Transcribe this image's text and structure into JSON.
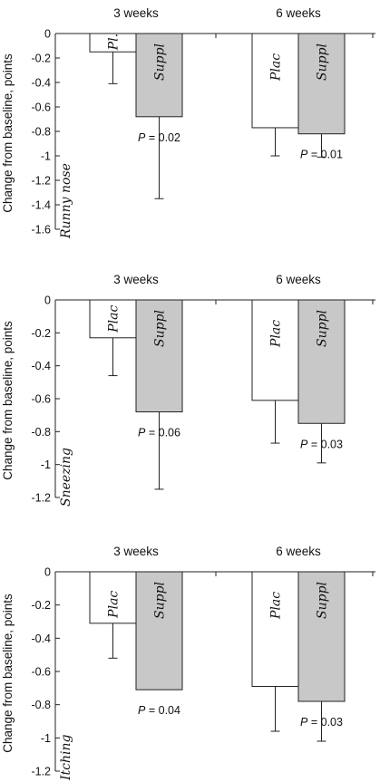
{
  "chart_data": [
    {
      "type": "bar",
      "panel_label": "Runny nose",
      "ylabel": "Change from baseline, points",
      "ylim": [
        -1.6,
        0
      ],
      "yticks": [
        "0",
        "-0.2",
        "-0.4",
        "-0.6",
        "-0.8",
        "-1",
        "-1.2",
        "-1.4",
        "-1.6"
      ],
      "ytick_values": [
        0,
        -0.2,
        -0.4,
        -0.6,
        -0.8,
        -1,
        -1.2,
        -1.4,
        -1.6
      ],
      "categories": [
        "3 weeks",
        "6 weeks"
      ],
      "series": [
        {
          "name": "Pl.",
          "values": [
            -0.15,
            -0.77
          ],
          "errors": [
            0.26,
            0.23
          ],
          "color": "#ffffff"
        },
        {
          "name": "Suppl",
          "values": [
            -0.68,
            -0.82
          ],
          "errors": [
            0.67,
            0.19
          ],
          "color": "#c8c8c8"
        }
      ],
      "bar_names": [
        [
          "Pl.",
          "Plac"
        ],
        [
          "Suppl",
          "Suppl"
        ]
      ],
      "p_values": [
        "= 0.02",
        "= 0.01"
      ]
    },
    {
      "type": "bar",
      "panel_label": "Sneezing",
      "ylabel": "Change from baseline, points",
      "ylim": [
        -1.2,
        0
      ],
      "yticks": [
        "0",
        "-0.2",
        "-0.4",
        "-0.6",
        "-0.8",
        "-1",
        "-1.2"
      ],
      "ytick_values": [
        0,
        -0.2,
        -0.4,
        -0.6,
        -0.8,
        -1,
        -1.2
      ],
      "categories": [
        "3 weeks",
        "6 weeks"
      ],
      "series": [
        {
          "name": "Plac",
          "values": [
            -0.23,
            -0.61
          ],
          "errors": [
            0.23,
            0.26
          ],
          "color": "#ffffff"
        },
        {
          "name": "Suppl",
          "values": [
            -0.68,
            -0.75
          ],
          "errors": [
            0.47,
            0.24
          ],
          "color": "#c8c8c8"
        }
      ],
      "bar_names": [
        [
          "Plac",
          "Plac"
        ],
        [
          "Suppl",
          "Suppl"
        ]
      ],
      "p_values": [
        "= 0.06",
        "= 0.03"
      ]
    },
    {
      "type": "bar",
      "panel_label": "Itching",
      "ylabel": "Change from baseline, points",
      "ylim": [
        -1.2,
        0
      ],
      "yticks": [
        "0",
        "-0.2",
        "-0.4",
        "-0.6",
        "-0.8",
        "-1",
        "-1.2"
      ],
      "ytick_values": [
        0,
        -0.2,
        -0.4,
        -0.6,
        -0.8,
        -1,
        -1.2
      ],
      "categories": [
        "3 weeks",
        "6 weeks"
      ],
      "series": [
        {
          "name": "Plac",
          "values": [
            -0.31,
            -0.69
          ],
          "errors": [
            0.21,
            0.27
          ],
          "color": "#ffffff"
        },
        {
          "name": "Suppl",
          "values": [
            -0.71,
            -0.78
          ],
          "errors": [
            0.0,
            0.24
          ],
          "color": "#c8c8c8"
        }
      ],
      "bar_names": [
        [
          "Plac",
          "Plac"
        ],
        [
          "Suppl",
          "Suppl"
        ]
      ],
      "p_values": [
        "= 0.04",
        "= 0.03"
      ]
    }
  ],
  "p_symbol": "P"
}
